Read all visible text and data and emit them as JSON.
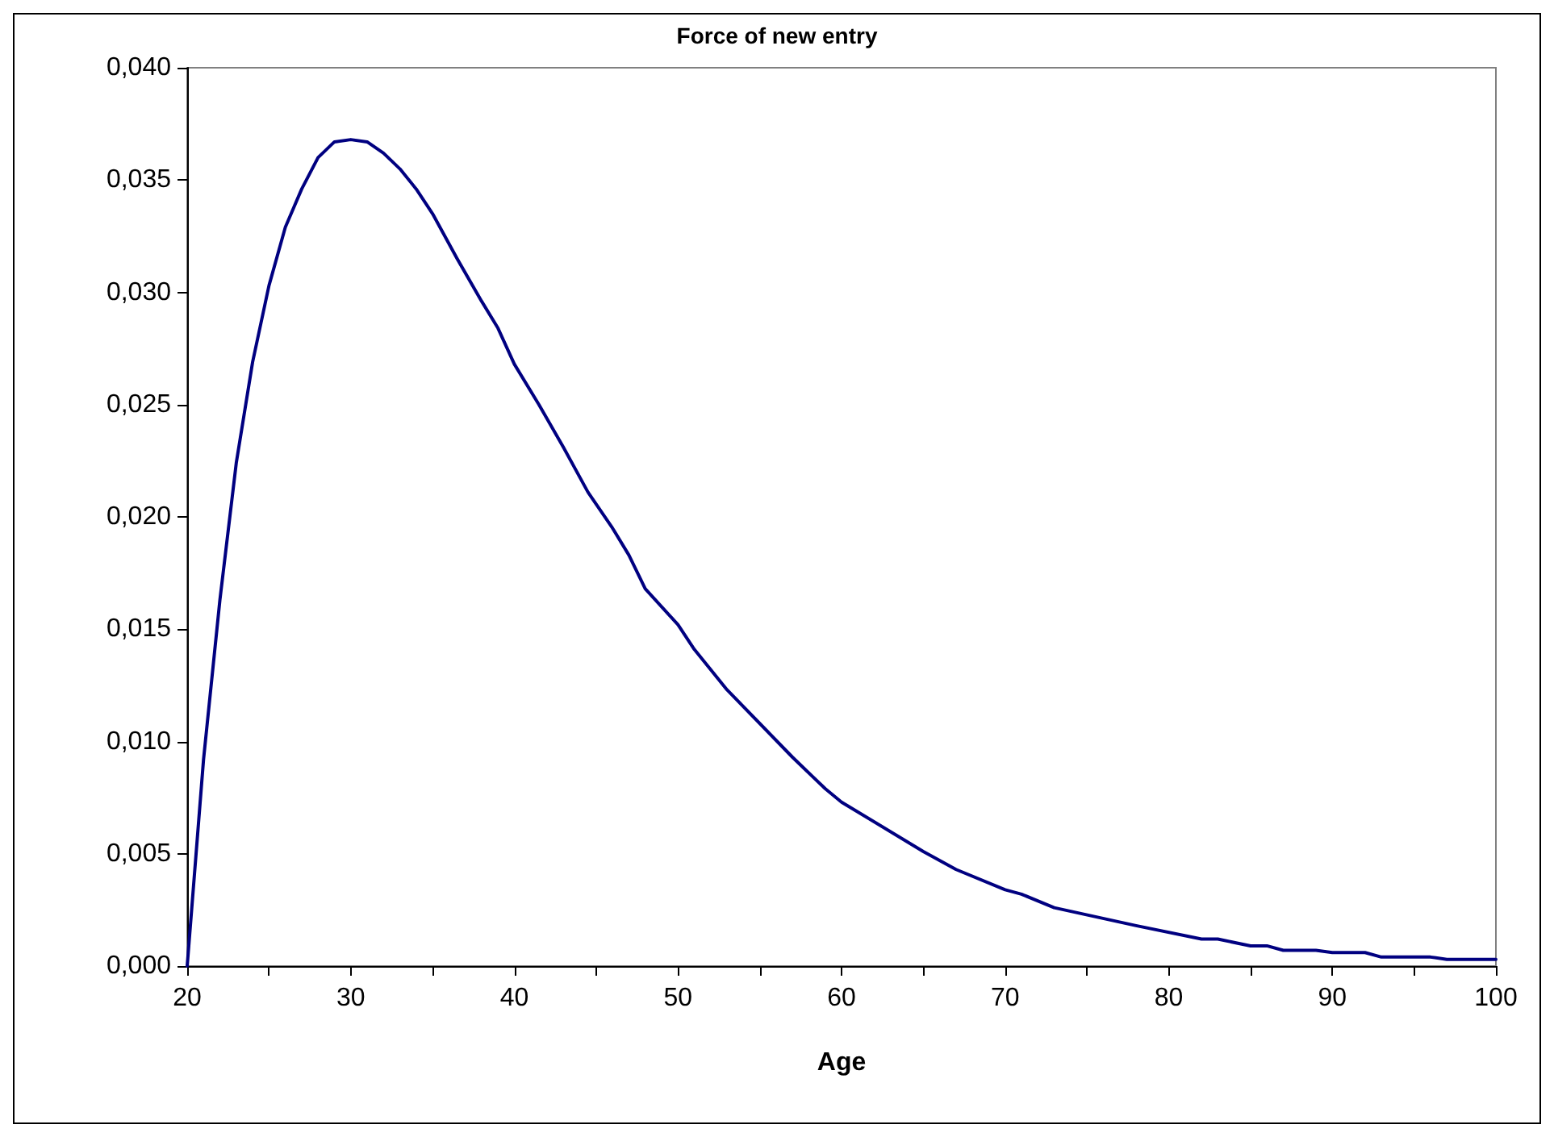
{
  "chart_data": {
    "type": "line",
    "title": "Force of new entry",
    "xlabel": "Age",
    "x": [
      20,
      21,
      22,
      23,
      24,
      25,
      26,
      27,
      28,
      29,
      30,
      31,
      32,
      33,
      34,
      35,
      36.5,
      38,
      39,
      40,
      41.5,
      43,
      44.5,
      46,
      47,
      48,
      50,
      51,
      53,
      57,
      59,
      60,
      65,
      67,
      70,
      71,
      73,
      78,
      82,
      83,
      85,
      86,
      87,
      89,
      90,
      92,
      93,
      96,
      97,
      100
    ],
    "series": [
      {
        "color": "#000080",
        "values": [
          0,
          0.0092,
          0.0163,
          0.0224,
          0.0269,
          0.0303,
          0.0329,
          0.0346,
          0.036,
          0.0367,
          0.0368,
          0.0367,
          0.0362,
          0.0355,
          0.0346,
          0.0335,
          0.0315,
          0.0296,
          0.0284,
          0.0268,
          0.025,
          0.0231,
          0.0211,
          0.0195,
          0.0183,
          0.0168,
          0.0152,
          0.0141,
          0.0123,
          0.0093,
          0.0079,
          0.0073,
          0.0051,
          0.0043,
          0.0034,
          0.0032,
          0.0026,
          0.0018,
          0.0012,
          0.0012,
          0.0009,
          0.0009,
          0.0007,
          0.0007,
          0.0006,
          0.0006,
          0.0004,
          0.0004,
          0.0003,
          0.0003
        ]
      }
    ],
    "xlim": [
      20,
      100
    ],
    "xticks": [
      20,
      {
        "value": 25,
        "label": null
      },
      30,
      {
        "value": 35,
        "label": null
      },
      40,
      {
        "value": 45,
        "label": null
      },
      50,
      {
        "value": 55,
        "label": null
      },
      60,
      {
        "value": 65,
        "label": null
      },
      70,
      {
        "value": 75,
        "label": null
      },
      80,
      {
        "value": 85,
        "label": null
      },
      90,
      {
        "value": 95,
        "label": null
      },
      100
    ],
    "ylim": [
      0,
      0.04
    ],
    "yticks": [
      {
        "value": 0,
        "label": "0,000"
      },
      {
        "value": 0.005,
        "label": "0,005"
      },
      {
        "value": 0.01,
        "label": "0,010"
      },
      {
        "value": 0.015,
        "label": "0,015"
      },
      {
        "value": 0.02,
        "label": "0,020"
      },
      {
        "value": 0.025,
        "label": "0,025"
      },
      {
        "value": 0.03,
        "label": "0,030"
      },
      {
        "value": 0.035,
        "label": "0,035"
      },
      {
        "value": 0.04,
        "label": "0,040"
      }
    ],
    "grid": false,
    "marker": "none",
    "line_style": "solid"
  }
}
